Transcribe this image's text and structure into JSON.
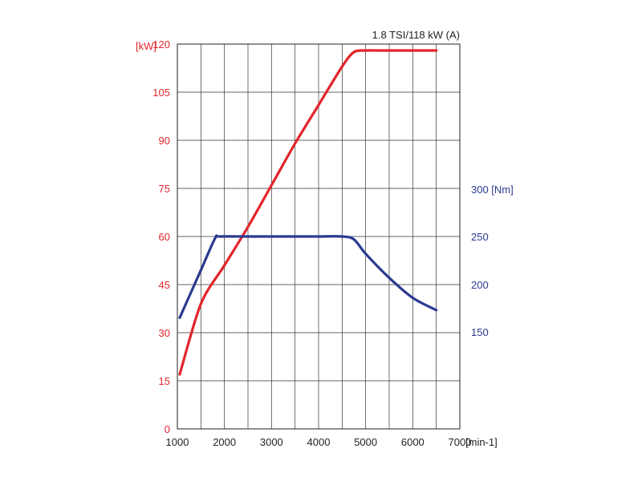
{
  "chart_data": {
    "type": "line",
    "title": "1.8 TSI/118 kW (A)",
    "x_axis": {
      "unit_label": "[min-1]",
      "range": [
        1000,
        7000
      ],
      "ticks": [
        1000,
        2000,
        3000,
        4000,
        5000,
        6000,
        7000
      ]
    },
    "y_axis_left": {
      "unit_label": "[kW]",
      "range": [
        0,
        120
      ],
      "ticks": [
        0,
        15,
        30,
        45,
        60,
        75,
        90,
        105,
        120
      ],
      "color": "#e3242b"
    },
    "y_axis_right": {
      "unit_label": "[Nm]",
      "ticks": [
        150,
        200,
        250,
        300
      ],
      "color": "#2b3a8f",
      "mapping_note": ""
    },
    "grid": true,
    "series": [
      {
        "name": "",
        "axis": "left",
        "color": "#e3242b",
        "x": [
          1050,
          1500,
          2000,
          2500,
          3000,
          3500,
          4000,
          4500,
          4750,
          5000,
          5250,
          5500,
          6000,
          6500
        ],
        "y": [
          17,
          39,
          51,
          63,
          76,
          89,
          101,
          113,
          117.5,
          118,
          118,
          118,
          118,
          118
        ]
      },
      {
        "name": "",
        "axis": "right",
        "color": "#2b3a8f",
        "x": [
          1050,
          1500,
          1800,
          1900,
          2500,
          3000,
          3500,
          4000,
          4500,
          4750,
          5000,
          5500,
          6000,
          6500
        ],
        "y": [
          165,
          215,
          248,
          250,
          250,
          250,
          250,
          250,
          250,
          247,
          232,
          207,
          186,
          173
        ]
      }
    ]
  }
}
